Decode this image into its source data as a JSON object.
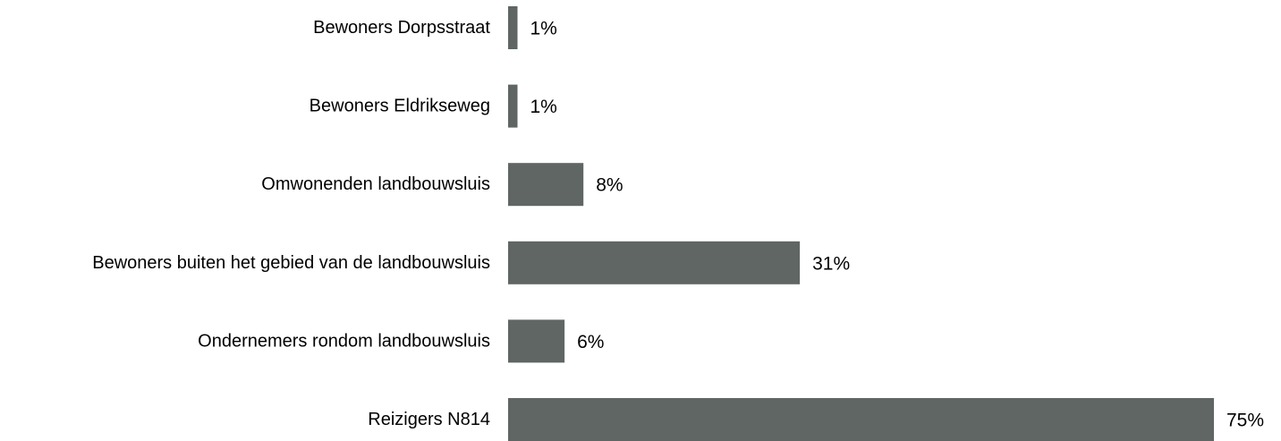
{
  "chart_data": {
    "type": "bar",
    "orientation": "horizontal",
    "categories": [
      "Bewoners Dorpsstraat",
      "Bewoners Eldrikseweg",
      "Omwonenden landbouwsluis",
      "Bewoners buiten het gebied van de landbouwsluis",
      "Ondernemers rondom landbouwsluis",
      "Reizigers N814"
    ],
    "values": [
      1,
      1,
      8,
      31,
      6,
      75
    ],
    "value_labels": [
      "1%",
      "1%",
      "8%",
      "31%",
      "6%",
      "75%"
    ],
    "unit": "%",
    "bar_color": "#5f6664",
    "grid": false,
    "legend": "none"
  }
}
